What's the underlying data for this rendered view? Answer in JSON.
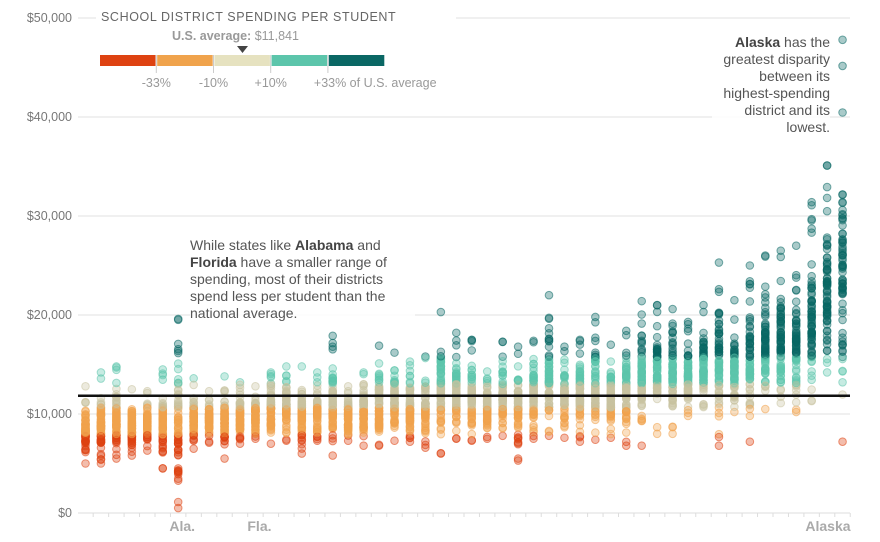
{
  "legend": {
    "title": "SCHOOL DISTRICT SPENDING PER STUDENT",
    "avg_label": "U.S. average:",
    "avg_value": "$11,841",
    "bins": [
      {
        "name": "below -33%",
        "color": "#de4211"
      },
      {
        "name": "-33% to -10%",
        "color": "#f0a34c"
      },
      {
        "name": "-10% to +10%",
        "color": "#e6e2c0"
      },
      {
        "name": "+10% to +33%",
        "color": "#5cc5ab"
      },
      {
        "name": "above +33%",
        "color": "#0a6764"
      }
    ],
    "tick_labels": [
      "-33%",
      "-10%",
      "+10%",
      "+33% of U.S. average"
    ]
  },
  "annotations": {
    "middle": {
      "pre": "While states like ",
      "bold1": "Alabama",
      "mid": " and ",
      "bold2": "Florida",
      "post": " have a smaller range of spending, most of their districts spend less per student than the national average."
    },
    "alaska": {
      "bold": "Alaska",
      "post": " has the greatest disparity between its highest-spending district and its lowest."
    }
  },
  "chart_data": {
    "type": "scatter",
    "title": "School district spending per student",
    "xlabel": "",
    "ylabel": "Spending per student",
    "ylim": [
      0,
      50000
    ],
    "yticks": [
      0,
      10000,
      20000,
      30000,
      40000,
      50000
    ],
    "ytick_labels": [
      "$0",
      "$10,000",
      "$20,000",
      "$30,000",
      "$40,000",
      "$50,000"
    ],
    "us_average": 11841,
    "grid": true,
    "x_labels": [
      {
        "index": 6,
        "label": "Ala."
      },
      {
        "index": 11,
        "label": "Fla."
      },
      {
        "index": 49,
        "label": "Alaska"
      }
    ],
    "states_ranges_k": [
      [
        5.0,
        12.8
      ],
      [
        5.0,
        14.2
      ],
      [
        5.5,
        14.8
      ],
      [
        5.8,
        12.5
      ],
      [
        6.3,
        12.3
      ],
      [
        4.5,
        14.5
      ],
      [
        0.5,
        19.6
      ],
      [
        6.5,
        13.6
      ],
      [
        7.1,
        12.3
      ],
      [
        5.5,
        13.8
      ],
      [
        7.0,
        13.2
      ],
      [
        7.5,
        12.8
      ],
      [
        7.0,
        14.2
      ],
      [
        7.3,
        14.8
      ],
      [
        6.0,
        14.8
      ],
      [
        7.3,
        14.2
      ],
      [
        5.8,
        17.9
      ],
      [
        7.3,
        12.8
      ],
      [
        6.8,
        14.2
      ],
      [
        6.8,
        16.9
      ],
      [
        7.3,
        16.2
      ],
      [
        7.2,
        15.3
      ],
      [
        6.6,
        15.8
      ],
      [
        6.0,
        20.3
      ],
      [
        7.5,
        18.2
      ],
      [
        7.3,
        17.5
      ],
      [
        7.5,
        14.3
      ],
      [
        7.8,
        17.3
      ],
      [
        5.3,
        16.8
      ],
      [
        7.5,
        17.4
      ],
      [
        7.8,
        22.0
      ],
      [
        7.6,
        16.8
      ],
      [
        7.2,
        17.5
      ],
      [
        7.4,
        19.8
      ],
      [
        7.6,
        17.0
      ],
      [
        6.8,
        18.4
      ],
      [
        6.8,
        21.4
      ],
      [
        8.0,
        21.0
      ],
      [
        8.0,
        20.6
      ],
      [
        9.8,
        19.3
      ],
      [
        10.7,
        21.0
      ],
      [
        6.8,
        25.3
      ],
      [
        10.2,
        21.5
      ],
      [
        7.2,
        25.0
      ],
      [
        10.5,
        26.0
      ],
      [
        11.1,
        26.5
      ],
      [
        10.2,
        27.0
      ],
      [
        11.3,
        31.4
      ],
      [
        14.2,
        35.1
      ],
      [
        7.2,
        47.8
      ]
    ],
    "state_medians_k": [
      8.0,
      8.5,
      8.8,
      9.0,
      9.2,
      9.5,
      9.6,
      9.5,
      9.6,
      9.7,
      9.8,
      9.7,
      10.2,
      10.5,
      10.5,
      10.6,
      11.0,
      10.3,
      10.8,
      11.2,
      11.3,
      11.0,
      11.4,
      12.5,
      12.2,
      12.2,
      11.4,
      12.0,
      11.6,
      12.4,
      13.0,
      12.3,
      12.6,
      13.8,
      12.4,
      13.4,
      14.6,
      14.8,
      14.6,
      13.0,
      14.5,
      15.5,
      14.0,
      16.0,
      15.2,
      16.0,
      16.5,
      17.0,
      22.0,
      21.0
    ]
  }
}
